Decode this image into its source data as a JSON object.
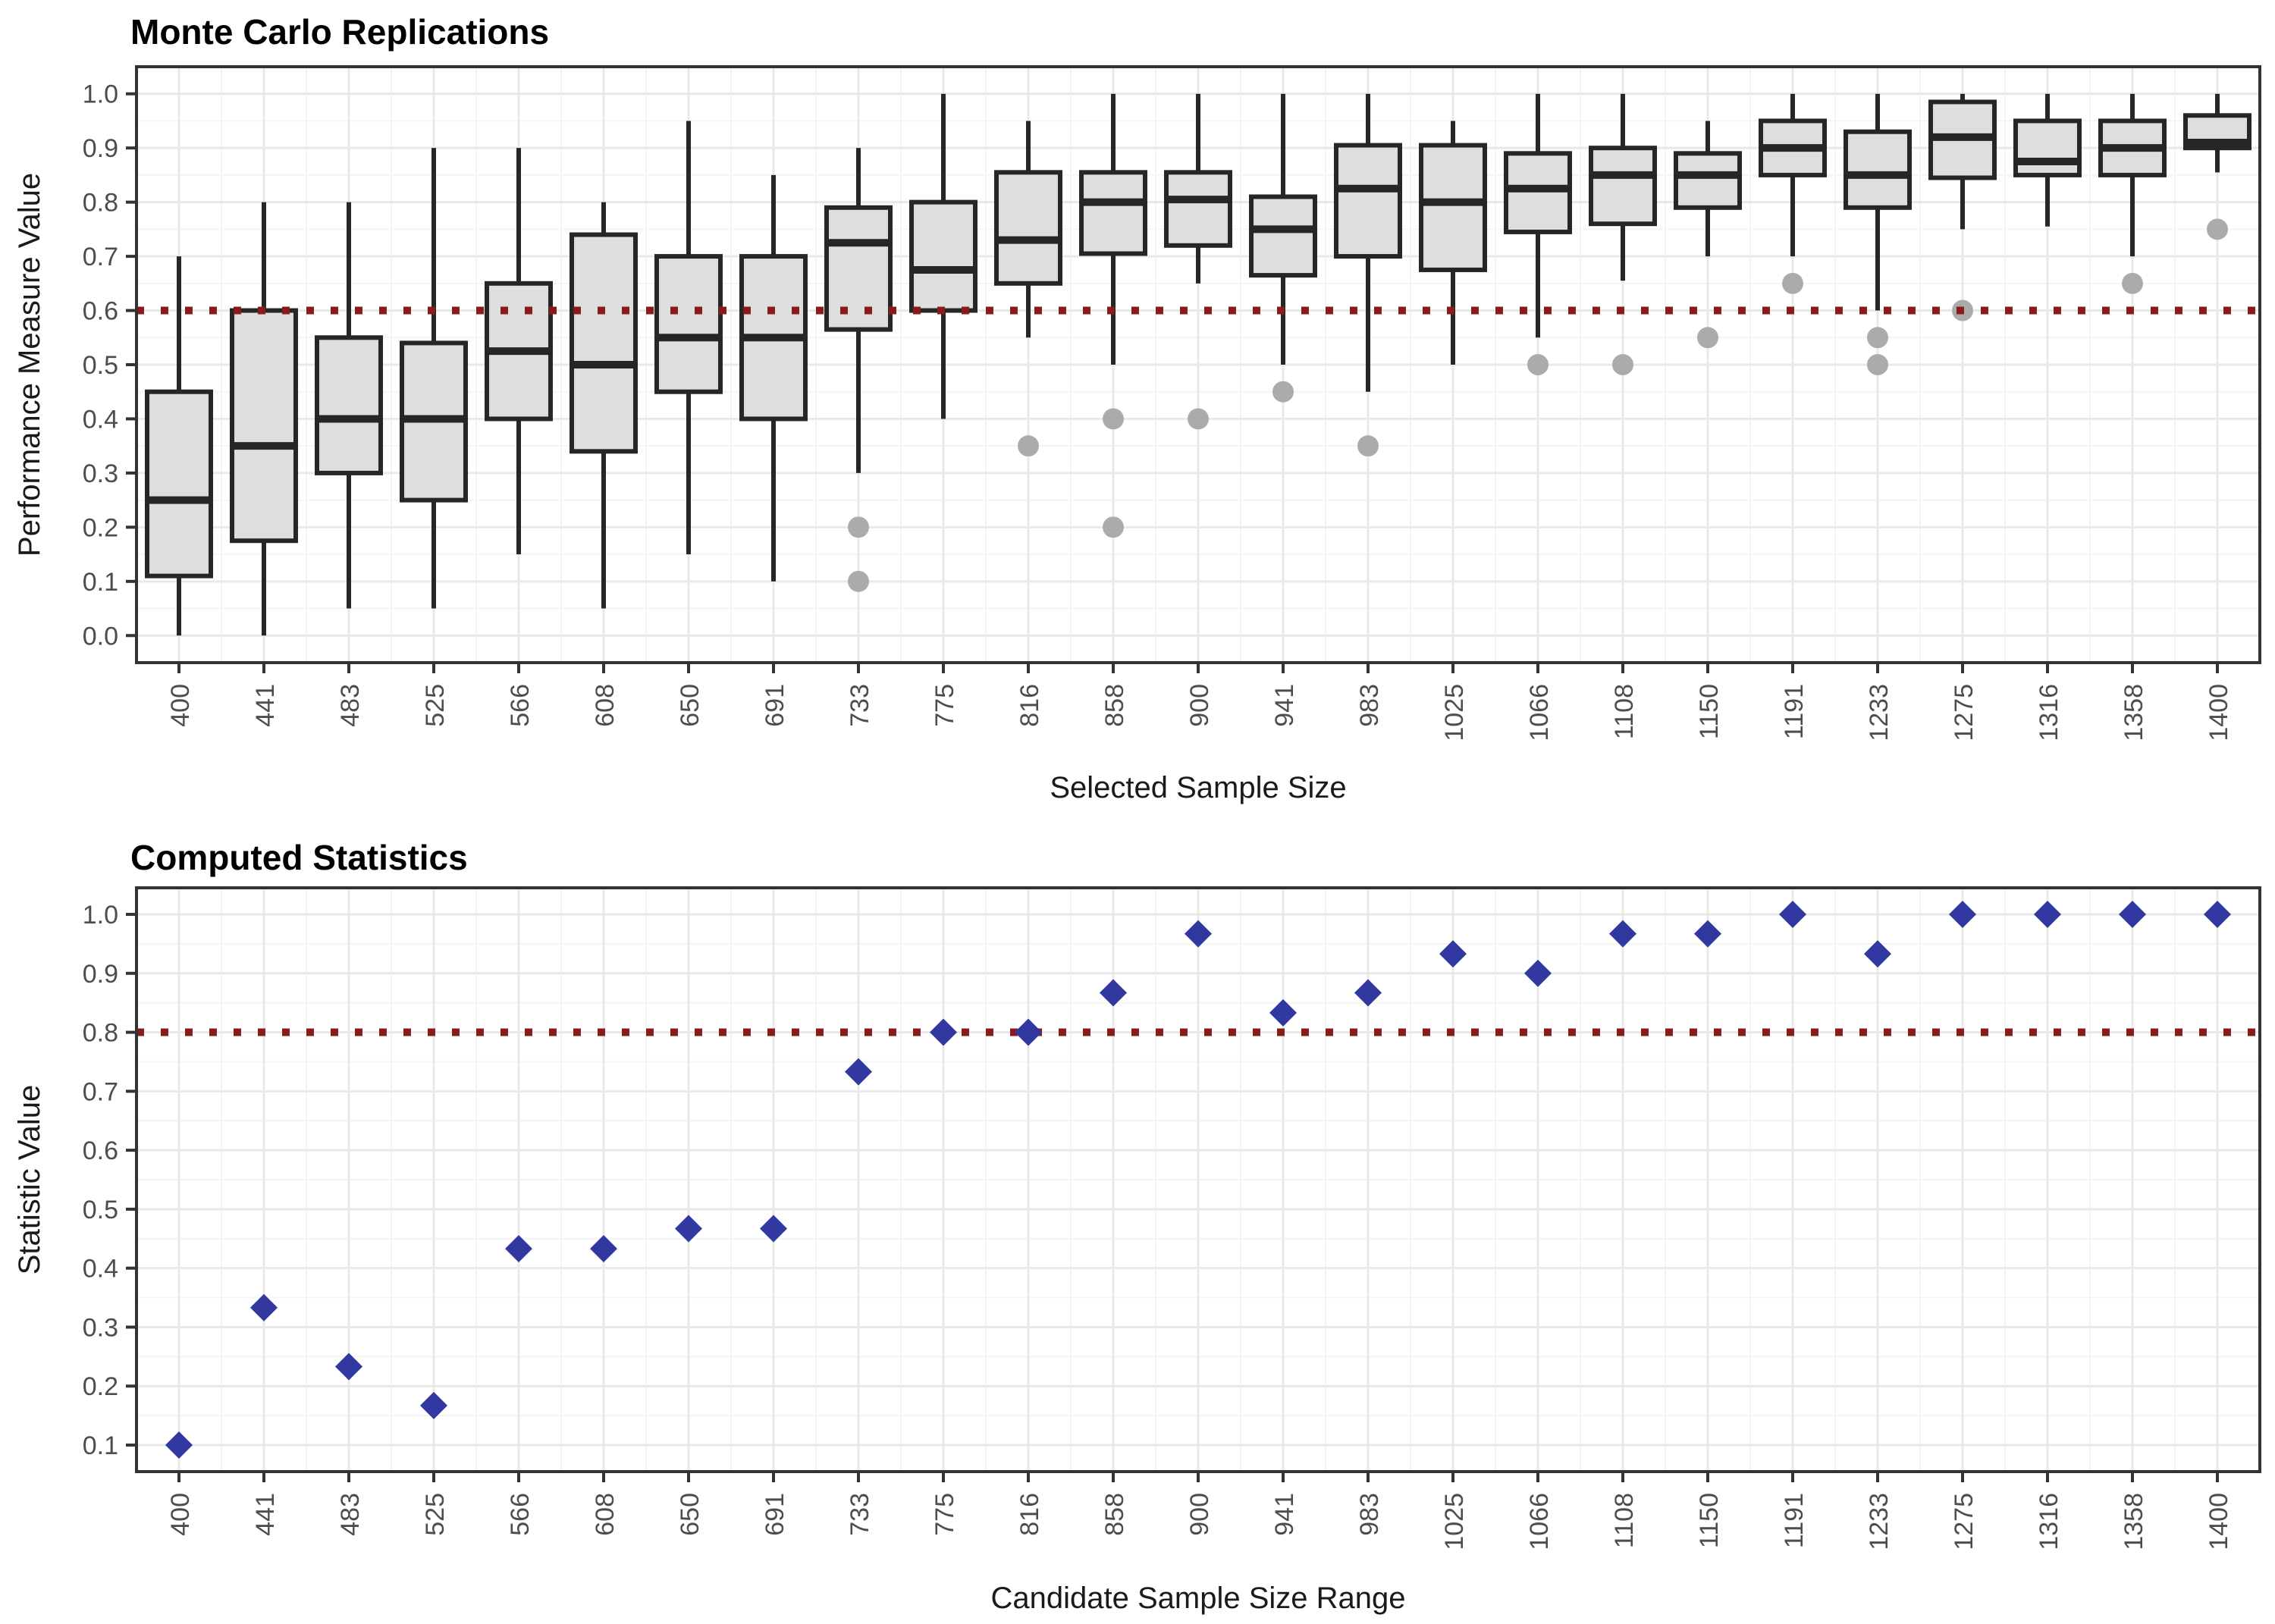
{
  "colors": {
    "background": "#ffffff",
    "panel_border": "#333333",
    "grid_major": "#e9e9e9",
    "grid_minor": "#f4f4f4",
    "box_fill": "#dedede",
    "box_stroke": "#262626",
    "outlier": "#ababab",
    "ref_line": "#8b1a1a",
    "diamond": "#3138a0",
    "tick_mark": "#333333",
    "tick_label": "#4d4d4d"
  },
  "chart_data": [
    {
      "type": "boxplot",
      "title": "Monte Carlo Replications",
      "xlabel": "Selected Sample Size",
      "ylabel": "Performance Measure Value",
      "categories": [
        400,
        441,
        483,
        525,
        566,
        608,
        650,
        691,
        733,
        775,
        816,
        858,
        900,
        941,
        983,
        1025,
        1066,
        1108,
        1150,
        1191,
        1233,
        1275,
        1316,
        1358,
        1400
      ],
      "yticks": [
        "0.0",
        "0.1",
        "0.2",
        "0.3",
        "0.4",
        "0.5",
        "0.6",
        "0.7",
        "0.8",
        "0.9",
        "1.0"
      ],
      "ylim": [
        -0.05,
        1.05
      ],
      "grid": true,
      "ref_line": {
        "y": 0.6,
        "style": "dotted"
      },
      "boxes": [
        {
          "lo": 0.0,
          "q1": 0.11,
          "med": 0.25,
          "q3": 0.45,
          "hi": 0.7,
          "out": []
        },
        {
          "lo": 0.0,
          "q1": 0.175,
          "med": 0.35,
          "q3": 0.6,
          "hi": 0.8,
          "out": []
        },
        {
          "lo": 0.05,
          "q1": 0.3,
          "med": 0.4,
          "q3": 0.55,
          "hi": 0.8,
          "out": []
        },
        {
          "lo": 0.05,
          "q1": 0.25,
          "med": 0.4,
          "q3": 0.54,
          "hi": 0.9,
          "out": []
        },
        {
          "lo": 0.15,
          "q1": 0.4,
          "med": 0.525,
          "q3": 0.65,
          "hi": 0.9,
          "out": []
        },
        {
          "lo": 0.05,
          "q1": 0.34,
          "med": 0.5,
          "q3": 0.74,
          "hi": 0.8,
          "out": []
        },
        {
          "lo": 0.15,
          "q1": 0.45,
          "med": 0.55,
          "q3": 0.7,
          "hi": 0.95,
          "out": []
        },
        {
          "lo": 0.1,
          "q1": 0.4,
          "med": 0.55,
          "q3": 0.7,
          "hi": 0.85,
          "out": []
        },
        {
          "lo": 0.3,
          "q1": 0.565,
          "med": 0.725,
          "q3": 0.79,
          "hi": 0.9,
          "out": [
            0.2,
            0.1
          ]
        },
        {
          "lo": 0.4,
          "q1": 0.6,
          "med": 0.675,
          "q3": 0.8,
          "hi": 1.0,
          "out": []
        },
        {
          "lo": 0.55,
          "q1": 0.65,
          "med": 0.73,
          "q3": 0.855,
          "hi": 0.95,
          "out": [
            0.35
          ]
        },
        {
          "lo": 0.5,
          "q1": 0.705,
          "med": 0.8,
          "q3": 0.855,
          "hi": 1.0,
          "out": [
            0.4,
            0.2
          ]
        },
        {
          "lo": 0.65,
          "q1": 0.72,
          "med": 0.805,
          "q3": 0.855,
          "hi": 1.0,
          "out": [
            0.4
          ]
        },
        {
          "lo": 0.5,
          "q1": 0.665,
          "med": 0.75,
          "q3": 0.81,
          "hi": 1.0,
          "out": [
            0.45
          ]
        },
        {
          "lo": 0.45,
          "q1": 0.7,
          "med": 0.825,
          "q3": 0.905,
          "hi": 1.0,
          "out": [
            0.35
          ]
        },
        {
          "lo": 0.5,
          "q1": 0.675,
          "med": 0.8,
          "q3": 0.905,
          "hi": 0.95,
          "out": []
        },
        {
          "lo": 0.55,
          "q1": 0.745,
          "med": 0.825,
          "q3": 0.89,
          "hi": 1.0,
          "out": [
            0.5
          ]
        },
        {
          "lo": 0.655,
          "q1": 0.76,
          "med": 0.85,
          "q3": 0.9,
          "hi": 1.0,
          "out": [
            0.5
          ]
        },
        {
          "lo": 0.7,
          "q1": 0.79,
          "med": 0.85,
          "q3": 0.89,
          "hi": 0.95,
          "out": [
            0.55
          ]
        },
        {
          "lo": 0.7,
          "q1": 0.85,
          "med": 0.9,
          "q3": 0.95,
          "hi": 1.0,
          "out": [
            0.65
          ]
        },
        {
          "lo": 0.6,
          "q1": 0.79,
          "med": 0.85,
          "q3": 0.93,
          "hi": 1.0,
          "out": [
            0.55,
            0.5
          ]
        },
        {
          "lo": 0.75,
          "q1": 0.845,
          "med": 0.92,
          "q3": 0.985,
          "hi": 1.0,
          "out": [
            0.6
          ]
        },
        {
          "lo": 0.755,
          "q1": 0.85,
          "med": 0.875,
          "q3": 0.95,
          "hi": 1.0,
          "out": []
        },
        {
          "lo": 0.7,
          "q1": 0.85,
          "med": 0.9,
          "q3": 0.95,
          "hi": 1.0,
          "out": [
            0.65
          ]
        },
        {
          "lo": 0.855,
          "q1": 0.9,
          "med": 0.91,
          "q3": 0.96,
          "hi": 1.0,
          "out": [
            0.75
          ]
        }
      ]
    },
    {
      "type": "scatter",
      "title": "Computed Statistics",
      "xlabel": "Candidate Sample Size Range",
      "ylabel": "Statistic Value",
      "categories": [
        400,
        441,
        483,
        525,
        566,
        608,
        650,
        691,
        733,
        775,
        816,
        858,
        900,
        941,
        983,
        1025,
        1066,
        1108,
        1150,
        1191,
        1233,
        1275,
        1316,
        1358,
        1400
      ],
      "yticks": [
        "0.1",
        "0.2",
        "0.3",
        "0.4",
        "0.5",
        "0.6",
        "0.7",
        "0.8",
        "0.9",
        "1.0"
      ],
      "ylim": [
        0.055,
        1.045
      ],
      "grid": true,
      "ref_line": {
        "y": 0.8,
        "style": "dotted"
      },
      "marker": "diamond",
      "values": [
        0.1,
        0.333,
        0.233,
        0.167,
        0.433,
        0.433,
        0.467,
        0.467,
        0.733,
        0.8,
        0.8,
        0.867,
        0.967,
        0.833,
        0.867,
        0.933,
        0.9,
        0.967,
        0.967,
        1.0,
        0.933,
        1.0,
        1.0,
        1.0,
        1.0
      ]
    }
  ]
}
